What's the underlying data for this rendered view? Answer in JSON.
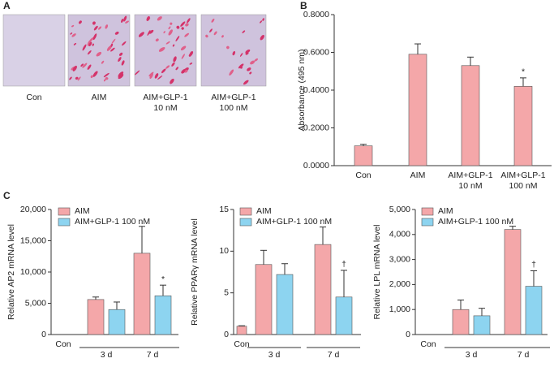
{
  "images": {
    "panel_label": "A",
    "captions": [
      [
        "Con"
      ],
      [
        "AIM"
      ],
      [
        "AIM+GLP-1",
        "10 nM"
      ],
      [
        "AIM+GLP-1",
        "100 nM"
      ]
    ]
  },
  "chart_data": [
    {
      "type": "bar",
      "panel_label": "B",
      "ylabel": "Absorbance (495 nm)",
      "categories": [
        [
          "Con"
        ],
        [
          "AIM"
        ],
        [
          "AIM+GLP-1",
          "10 nM"
        ],
        [
          "AIM+GLP-1",
          "100 nM"
        ]
      ],
      "series": [
        {
          "color": "#f4a7a9",
          "values": [
            0.105,
            0.59,
            0.53,
            0.42
          ],
          "errors": [
            0.008,
            0.055,
            0.045,
            0.045
          ],
          "markers": [
            null,
            null,
            null,
            "*"
          ]
        }
      ],
      "ylim": [
        0,
        0.8
      ],
      "yticks": [
        {
          "value": 0,
          "label": "0.0000"
        },
        {
          "value": 0.2,
          "label": "0.2000"
        },
        {
          "value": 0.4,
          "label": "0.4000"
        },
        {
          "value": 0.6,
          "label": "0.6000"
        },
        {
          "value": 0.8,
          "label": "0.8000"
        }
      ]
    },
    {
      "type": "bar",
      "panel_label": "C",
      "ylabel": "Relative AP2 mRNA level",
      "categories": [
        [
          "Con"
        ],
        [
          "3 d"
        ],
        [
          "7 d"
        ]
      ],
      "series": [
        {
          "name": "AIM",
          "color": "#f4a7a9",
          "values": [
            0,
            5600,
            13000
          ],
          "errors": [
            null,
            400,
            4300
          ],
          "markers": [
            null,
            null,
            null
          ]
        },
        {
          "name": "AIM+GLP-1 100 nM",
          "color": "#8dd4f0",
          "values": [
            null,
            4000,
            6200
          ],
          "errors": [
            null,
            1200,
            1700
          ],
          "markers": [
            null,
            null,
            "*"
          ]
        }
      ],
      "ylim": [
        0,
        20000
      ],
      "yticks": [
        0,
        {
          "value": 5000,
          "label": "5,000"
        },
        {
          "value": 10000,
          "label": "10,000"
        },
        {
          "value": 15000,
          "label": "15,000"
        },
        {
          "value": 20000,
          "label": "20,000"
        }
      ]
    },
    {
      "type": "bar",
      "ylabel": "Relative PPARγ mRNA level",
      "categories": [
        [
          "Con"
        ],
        [
          "3 d"
        ],
        [
          "7 d"
        ]
      ],
      "series": [
        {
          "name": "AIM",
          "color": "#f4a7a9",
          "values": [
            1,
            8.4,
            10.8
          ],
          "errors": [
            0.05,
            1.7,
            2.1
          ],
          "markers": [
            null,
            null,
            null
          ]
        },
        {
          "name": "AIM+GLP-1 100 nM",
          "color": "#8dd4f0",
          "values": [
            null,
            7.2,
            4.5
          ],
          "errors": [
            null,
            1.3,
            3.2
          ],
          "markers": [
            null,
            null,
            "†"
          ]
        }
      ],
      "ylim": [
        0,
        15
      ],
      "yticks": [
        0,
        5,
        10,
        15
      ]
    },
    {
      "type": "bar",
      "ylabel": "Relative LPL mRNA level",
      "categories": [
        [
          "Con"
        ],
        [
          "3 d"
        ],
        [
          "7 d"
        ]
      ],
      "series": [
        {
          "name": "AIM",
          "color": "#f4a7a9",
          "values": [
            0,
            1000,
            4200
          ],
          "errors": [
            null,
            380,
            130
          ],
          "markers": [
            null,
            null,
            null
          ]
        },
        {
          "name": "AIM+GLP-1 100 nM",
          "color": "#8dd4f0",
          "values": [
            null,
            750,
            1930
          ],
          "errors": [
            null,
            300,
            620
          ],
          "markers": [
            null,
            null,
            "†"
          ]
        }
      ],
      "ylim": [
        0,
        5000
      ],
      "yticks": [
        0,
        {
          "value": 1000,
          "label": "1,000"
        },
        {
          "value": 2000,
          "label": "2,000"
        },
        {
          "value": 3000,
          "label": "3,000"
        },
        {
          "value": 4000,
          "label": "4,000"
        },
        {
          "value": 5000,
          "label": "5,000"
        }
      ]
    }
  ]
}
